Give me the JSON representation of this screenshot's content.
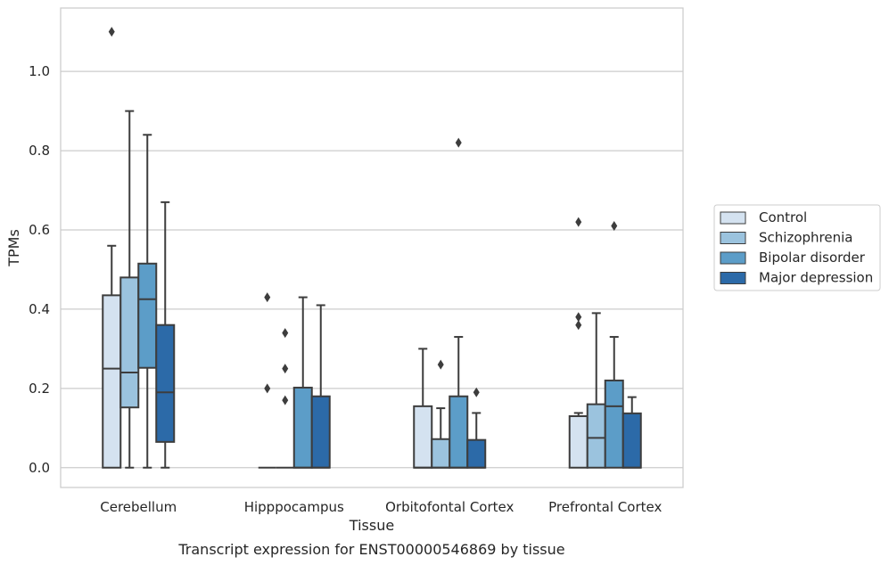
{
  "chart_data": {
    "type": "boxplot",
    "title": "Transcript expression for ENST00000546869 by tissue",
    "xlabel": "Tissue",
    "ylabel": "TPMs",
    "ylim": [
      -0.05,
      1.16
    ],
    "yticks": [
      0.0,
      0.2,
      0.4,
      0.6,
      0.8,
      1.0
    ],
    "ytick_labels": [
      "0.0",
      "0.2",
      "0.4",
      "0.6",
      "0.8",
      "1.0"
    ],
    "grid": "horizontal",
    "legend_position": "right",
    "categories": [
      "Cerebellum",
      "Hipppocampus",
      "Orbitofontal Cortex",
      "Prefrontal Cortex"
    ],
    "series": [
      {
        "name": "Control",
        "color": "#d4e2f0",
        "boxes": [
          {
            "whislo": 0.0,
            "q1": 0.0,
            "med": 0.25,
            "q3": 0.435,
            "whishi": 0.56,
            "fliers": [
              1.1
            ]
          },
          {
            "whislo": 0.0,
            "q1": 0.0,
            "med": 0.0,
            "q3": 0.0,
            "whishi": 0.0,
            "fliers": [
              0.43,
              0.2
            ]
          },
          {
            "whislo": 0.0,
            "q1": 0.0,
            "med": 0.0,
            "q3": 0.155,
            "whishi": 0.3,
            "fliers": []
          },
          {
            "whislo": 0.0,
            "q1": 0.0,
            "med": 0.13,
            "q3": 0.13,
            "whishi": 0.138,
            "fliers": [
              0.62,
              0.38,
              0.36
            ]
          }
        ]
      },
      {
        "name": "Schizophrenia",
        "color": "#9bc3de",
        "boxes": [
          {
            "whislo": 0.0,
            "q1": 0.152,
            "med": 0.24,
            "q3": 0.48,
            "whishi": 0.9,
            "fliers": []
          },
          {
            "whislo": 0.0,
            "q1": 0.0,
            "med": 0.0,
            "q3": 0.0,
            "whishi": 0.0,
            "fliers": [
              0.34,
              0.25,
              0.17
            ]
          },
          {
            "whislo": 0.0,
            "q1": 0.0,
            "med": 0.0,
            "q3": 0.072,
            "whishi": 0.15,
            "fliers": [
              0.26
            ]
          },
          {
            "whislo": 0.0,
            "q1": 0.0,
            "med": 0.075,
            "q3": 0.16,
            "whishi": 0.39,
            "fliers": []
          }
        ]
      },
      {
        "name": "Bipolar disorder",
        "color": "#5c9dc8",
        "boxes": [
          {
            "whislo": 0.0,
            "q1": 0.252,
            "med": 0.425,
            "q3": 0.515,
            "whishi": 0.84,
            "fliers": []
          },
          {
            "whislo": 0.0,
            "q1": 0.0,
            "med": 0.0,
            "q3": 0.202,
            "whishi": 0.43,
            "fliers": []
          },
          {
            "whislo": 0.0,
            "q1": 0.0,
            "med": 0.0,
            "q3": 0.18,
            "whishi": 0.33,
            "fliers": [
              0.82
            ]
          },
          {
            "whislo": 0.0,
            "q1": 0.0,
            "med": 0.155,
            "q3": 0.22,
            "whishi": 0.33,
            "fliers": [
              0.61
            ]
          }
        ]
      },
      {
        "name": "Major depression",
        "color": "#2c6aa8",
        "boxes": [
          {
            "whislo": 0.0,
            "q1": 0.065,
            "med": 0.19,
            "q3": 0.36,
            "whishi": 0.67,
            "fliers": []
          },
          {
            "whislo": 0.0,
            "q1": 0.0,
            "med": 0.0,
            "q3": 0.18,
            "whishi": 0.41,
            "fliers": []
          },
          {
            "whislo": 0.0,
            "q1": 0.0,
            "med": 0.0,
            "q3": 0.07,
            "whishi": 0.138,
            "fliers": [
              0.19
            ]
          },
          {
            "whislo": 0.0,
            "q1": 0.0,
            "med": 0.0,
            "q3": 0.137,
            "whishi": 0.178,
            "fliers": []
          }
        ]
      }
    ]
  }
}
